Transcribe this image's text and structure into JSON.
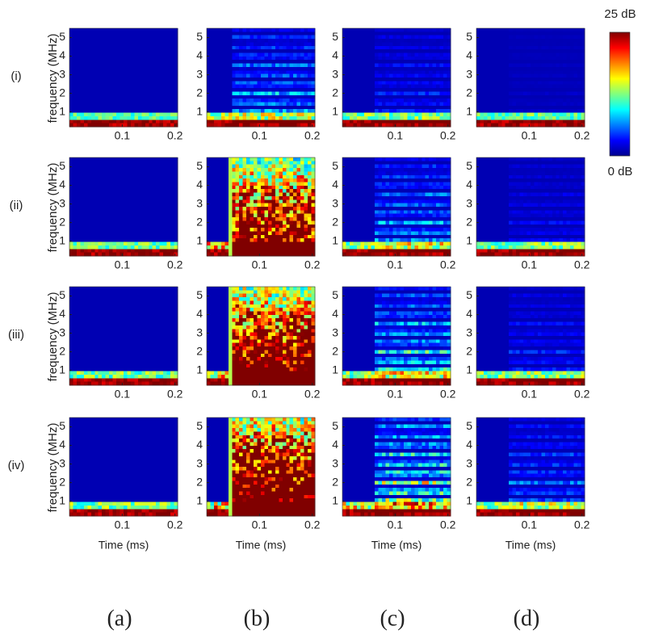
{
  "chart_data": {
    "type": "spectrogram-grid",
    "row_labels": [
      "(i)",
      "(ii)",
      "(iii)",
      "(iv)"
    ],
    "column_labels": [
      "(a)",
      "(b)",
      "(c)",
      "(d)"
    ],
    "y_label": "frequency (MHz)",
    "x_label": "Time (ms)",
    "xlim": [
      0,
      0.205
    ],
    "xticks": [
      0.1,
      0.2
    ],
    "ylim": [
      0.2,
      5.5
    ],
    "yticks": [
      1,
      2,
      3,
      4,
      5
    ],
    "colormap": "jet",
    "clim": [
      {
        "value": 0,
        "label": "0 dB"
      },
      {
        "value": 25,
        "label": "25 dB"
      }
    ]
  }
}
